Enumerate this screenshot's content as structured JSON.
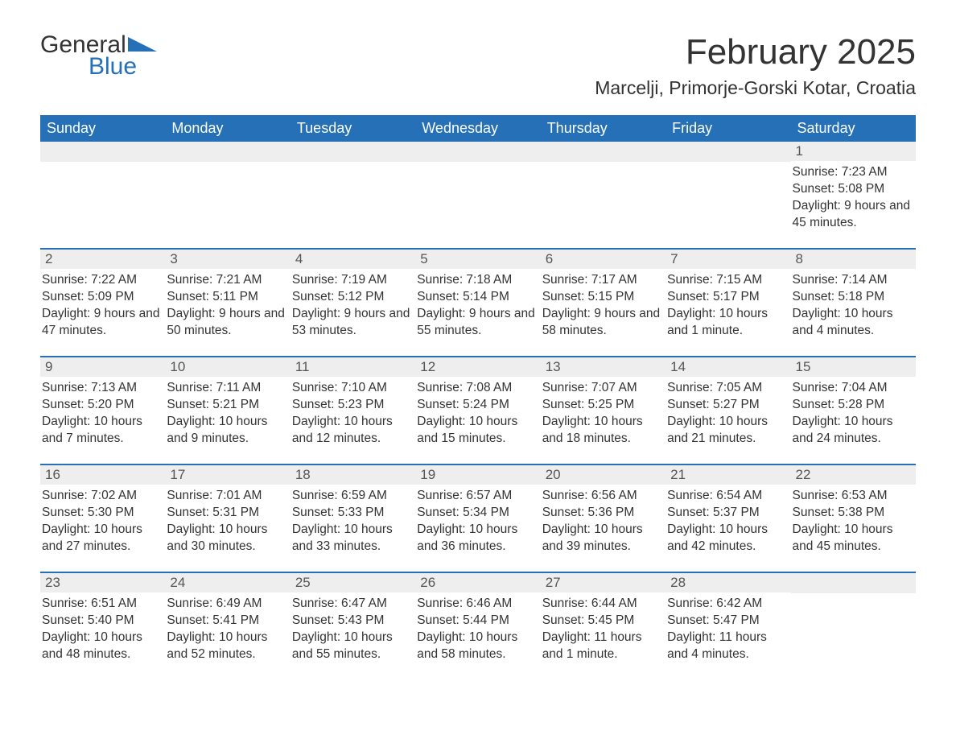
{
  "brand": {
    "word1": "General",
    "word2": "Blue",
    "triangle_color": "#2570b6"
  },
  "title": "February 2025",
  "location": "Marcelji, Primorje-Gorski Kotar, Croatia",
  "colors": {
    "header_bg": "#2570b6",
    "header_text": "#ffffff",
    "daynum_bg": "#eeeeee",
    "text": "#333333",
    "row_border": "#2570b6"
  },
  "weekdays": [
    "Sunday",
    "Monday",
    "Tuesday",
    "Wednesday",
    "Thursday",
    "Friday",
    "Saturday"
  ],
  "weeks": [
    [
      {
        "n": "",
        "sunrise": "",
        "sunset": "",
        "daylight": ""
      },
      {
        "n": "",
        "sunrise": "",
        "sunset": "",
        "daylight": ""
      },
      {
        "n": "",
        "sunrise": "",
        "sunset": "",
        "daylight": ""
      },
      {
        "n": "",
        "sunrise": "",
        "sunset": "",
        "daylight": ""
      },
      {
        "n": "",
        "sunrise": "",
        "sunset": "",
        "daylight": ""
      },
      {
        "n": "",
        "sunrise": "",
        "sunset": "",
        "daylight": ""
      },
      {
        "n": "1",
        "sunrise": "Sunrise: 7:23 AM",
        "sunset": "Sunset: 5:08 PM",
        "daylight": "Daylight: 9 hours and 45 minutes."
      }
    ],
    [
      {
        "n": "2",
        "sunrise": "Sunrise: 7:22 AM",
        "sunset": "Sunset: 5:09 PM",
        "daylight": "Daylight: 9 hours and 47 minutes."
      },
      {
        "n": "3",
        "sunrise": "Sunrise: 7:21 AM",
        "sunset": "Sunset: 5:11 PM",
        "daylight": "Daylight: 9 hours and 50 minutes."
      },
      {
        "n": "4",
        "sunrise": "Sunrise: 7:19 AM",
        "sunset": "Sunset: 5:12 PM",
        "daylight": "Daylight: 9 hours and 53 minutes."
      },
      {
        "n": "5",
        "sunrise": "Sunrise: 7:18 AM",
        "sunset": "Sunset: 5:14 PM",
        "daylight": "Daylight: 9 hours and 55 minutes."
      },
      {
        "n": "6",
        "sunrise": "Sunrise: 7:17 AM",
        "sunset": "Sunset: 5:15 PM",
        "daylight": "Daylight: 9 hours and 58 minutes."
      },
      {
        "n": "7",
        "sunrise": "Sunrise: 7:15 AM",
        "sunset": "Sunset: 5:17 PM",
        "daylight": "Daylight: 10 hours and 1 minute."
      },
      {
        "n": "8",
        "sunrise": "Sunrise: 7:14 AM",
        "sunset": "Sunset: 5:18 PM",
        "daylight": "Daylight: 10 hours and 4 minutes."
      }
    ],
    [
      {
        "n": "9",
        "sunrise": "Sunrise: 7:13 AM",
        "sunset": "Sunset: 5:20 PM",
        "daylight": "Daylight: 10 hours and 7 minutes."
      },
      {
        "n": "10",
        "sunrise": "Sunrise: 7:11 AM",
        "sunset": "Sunset: 5:21 PM",
        "daylight": "Daylight: 10 hours and 9 minutes."
      },
      {
        "n": "11",
        "sunrise": "Sunrise: 7:10 AM",
        "sunset": "Sunset: 5:23 PM",
        "daylight": "Daylight: 10 hours and 12 minutes."
      },
      {
        "n": "12",
        "sunrise": "Sunrise: 7:08 AM",
        "sunset": "Sunset: 5:24 PM",
        "daylight": "Daylight: 10 hours and 15 minutes."
      },
      {
        "n": "13",
        "sunrise": "Sunrise: 7:07 AM",
        "sunset": "Sunset: 5:25 PM",
        "daylight": "Daylight: 10 hours and 18 minutes."
      },
      {
        "n": "14",
        "sunrise": "Sunrise: 7:05 AM",
        "sunset": "Sunset: 5:27 PM",
        "daylight": "Daylight: 10 hours and 21 minutes."
      },
      {
        "n": "15",
        "sunrise": "Sunrise: 7:04 AM",
        "sunset": "Sunset: 5:28 PM",
        "daylight": "Daylight: 10 hours and 24 minutes."
      }
    ],
    [
      {
        "n": "16",
        "sunrise": "Sunrise: 7:02 AM",
        "sunset": "Sunset: 5:30 PM",
        "daylight": "Daylight: 10 hours and 27 minutes."
      },
      {
        "n": "17",
        "sunrise": "Sunrise: 7:01 AM",
        "sunset": "Sunset: 5:31 PM",
        "daylight": "Daylight: 10 hours and 30 minutes."
      },
      {
        "n": "18",
        "sunrise": "Sunrise: 6:59 AM",
        "sunset": "Sunset: 5:33 PM",
        "daylight": "Daylight: 10 hours and 33 minutes."
      },
      {
        "n": "19",
        "sunrise": "Sunrise: 6:57 AM",
        "sunset": "Sunset: 5:34 PM",
        "daylight": "Daylight: 10 hours and 36 minutes."
      },
      {
        "n": "20",
        "sunrise": "Sunrise: 6:56 AM",
        "sunset": "Sunset: 5:36 PM",
        "daylight": "Daylight: 10 hours and 39 minutes."
      },
      {
        "n": "21",
        "sunrise": "Sunrise: 6:54 AM",
        "sunset": "Sunset: 5:37 PM",
        "daylight": "Daylight: 10 hours and 42 minutes."
      },
      {
        "n": "22",
        "sunrise": "Sunrise: 6:53 AM",
        "sunset": "Sunset: 5:38 PM",
        "daylight": "Daylight: 10 hours and 45 minutes."
      }
    ],
    [
      {
        "n": "23",
        "sunrise": "Sunrise: 6:51 AM",
        "sunset": "Sunset: 5:40 PM",
        "daylight": "Daylight: 10 hours and 48 minutes."
      },
      {
        "n": "24",
        "sunrise": "Sunrise: 6:49 AM",
        "sunset": "Sunset: 5:41 PM",
        "daylight": "Daylight: 10 hours and 52 minutes."
      },
      {
        "n": "25",
        "sunrise": "Sunrise: 6:47 AM",
        "sunset": "Sunset: 5:43 PM",
        "daylight": "Daylight: 10 hours and 55 minutes."
      },
      {
        "n": "26",
        "sunrise": "Sunrise: 6:46 AM",
        "sunset": "Sunset: 5:44 PM",
        "daylight": "Daylight: 10 hours and 58 minutes."
      },
      {
        "n": "27",
        "sunrise": "Sunrise: 6:44 AM",
        "sunset": "Sunset: 5:45 PM",
        "daylight": "Daylight: 11 hours and 1 minute."
      },
      {
        "n": "28",
        "sunrise": "Sunrise: 6:42 AM",
        "sunset": "Sunset: 5:47 PM",
        "daylight": "Daylight: 11 hours and 4 minutes."
      },
      {
        "n": "",
        "sunrise": "",
        "sunset": "",
        "daylight": ""
      }
    ]
  ]
}
